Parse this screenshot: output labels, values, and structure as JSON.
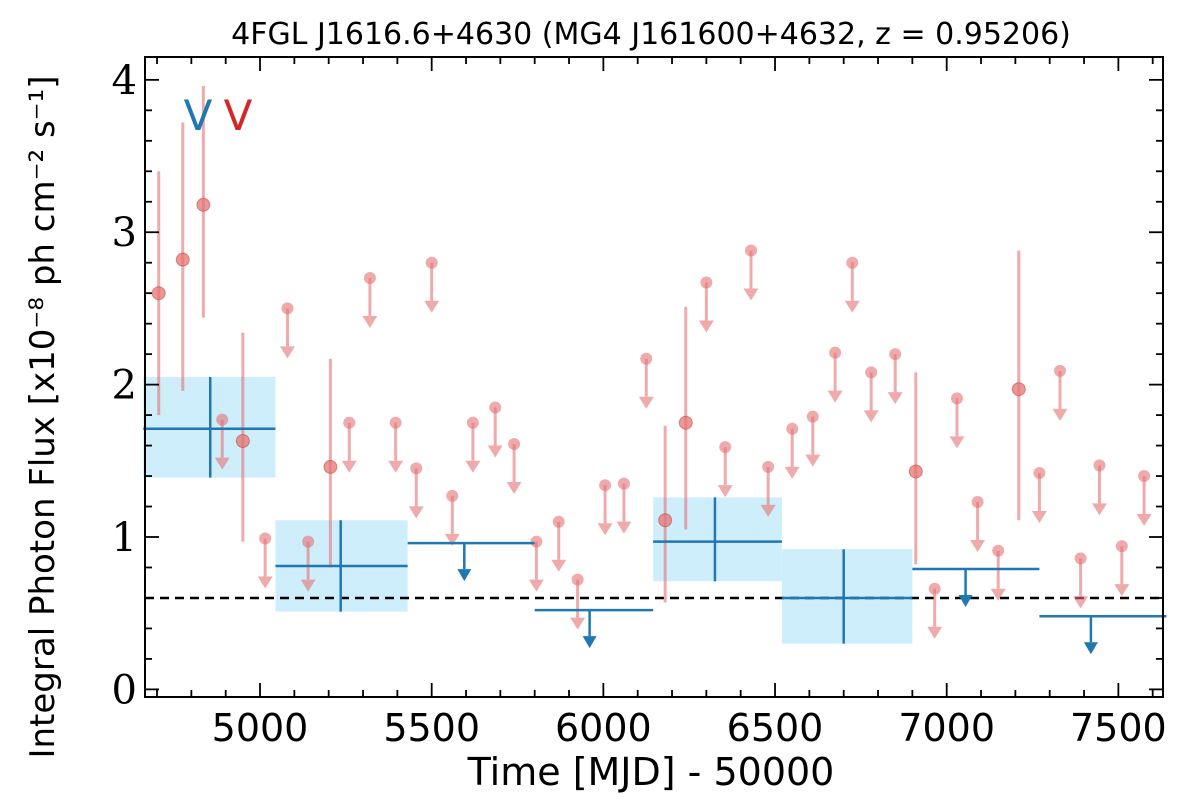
{
  "chart_data": {
    "type": "scatter",
    "title": "4FGL J1616.6+4630 (MG4 J161600+4632, z = 0.95206)",
    "xlabel": "Time [MJD] - 50000",
    "ylabel": "Integral Photon Flux [x10⁻⁸ ph cm⁻² s⁻¹]",
    "xlim": [
      4665,
      7630
    ],
    "ylim": [
      -0.05,
      4.15
    ],
    "xticks": [
      5000,
      5500,
      6000,
      6500,
      7000,
      7500
    ],
    "yticks": [
      0,
      1,
      2,
      3,
      4
    ],
    "grid": false,
    "baseline": 0.6,
    "markers": [
      {
        "label": "V",
        "color": "#1f77b4"
      },
      {
        "label": "V",
        "color": "#d62728"
      }
    ],
    "colors": {
      "fine": "#e57373",
      "coarse": "#1f77b4",
      "box": "#cfeefb",
      "baseline": "#000000"
    },
    "fine_detections": [
      {
        "x": 4705,
        "y": 2.6,
        "lo": 1.8,
        "hi": 3.4
      },
      {
        "x": 4775,
        "y": 2.82,
        "lo": 1.96,
        "hi": 3.72
      },
      {
        "x": 4835,
        "y": 3.18,
        "lo": 2.44,
        "hi": 3.96
      },
      {
        "x": 4950,
        "y": 1.63,
        "lo": 0.97,
        "hi": 2.34
      },
      {
        "x": 5205,
        "y": 1.46,
        "lo": 0.8,
        "hi": 2.17
      },
      {
        "x": 6180,
        "y": 1.11,
        "lo": 0.57,
        "hi": 1.73
      },
      {
        "x": 6240,
        "y": 1.75,
        "lo": 1.05,
        "hi": 2.51
      },
      {
        "x": 6910,
        "y": 1.43,
        "lo": 0.82,
        "hi": 2.08
      },
      {
        "x": 7210,
        "y": 1.97,
        "lo": 1.11,
        "hi": 2.88
      }
    ],
    "fine_upper_limits": [
      {
        "x": 4890,
        "y": 1.77
      },
      {
        "x": 5015,
        "y": 0.99
      },
      {
        "x": 5080,
        "y": 2.5
      },
      {
        "x": 5140,
        "y": 0.97
      },
      {
        "x": 5260,
        "y": 1.75
      },
      {
        "x": 5320,
        "y": 2.7
      },
      {
        "x": 5395,
        "y": 1.75
      },
      {
        "x": 5455,
        "y": 1.45
      },
      {
        "x": 5500,
        "y": 2.8
      },
      {
        "x": 5560,
        "y": 1.27
      },
      {
        "x": 5620,
        "y": 1.75
      },
      {
        "x": 5685,
        "y": 1.85
      },
      {
        "x": 5740,
        "y": 1.61
      },
      {
        "x": 5805,
        "y": 0.97
      },
      {
        "x": 5870,
        "y": 1.1
      },
      {
        "x": 5925,
        "y": 0.72
      },
      {
        "x": 6005,
        "y": 1.34
      },
      {
        "x": 6060,
        "y": 1.35
      },
      {
        "x": 6125,
        "y": 2.17
      },
      {
        "x": 6300,
        "y": 2.67
      },
      {
        "x": 6355,
        "y": 1.59
      },
      {
        "x": 6430,
        "y": 2.88
      },
      {
        "x": 6480,
        "y": 1.46
      },
      {
        "x": 6550,
        "y": 1.71
      },
      {
        "x": 6610,
        "y": 1.79
      },
      {
        "x": 6675,
        "y": 2.21
      },
      {
        "x": 6725,
        "y": 2.8
      },
      {
        "x": 6780,
        "y": 2.08
      },
      {
        "x": 6850,
        "y": 2.2
      },
      {
        "x": 6965,
        "y": 0.66
      },
      {
        "x": 7030,
        "y": 1.91
      },
      {
        "x": 7090,
        "y": 1.23
      },
      {
        "x": 7150,
        "y": 0.91
      },
      {
        "x": 7270,
        "y": 1.42
      },
      {
        "x": 7330,
        "y": 2.09
      },
      {
        "x": 7390,
        "y": 0.86
      },
      {
        "x": 7445,
        "y": 1.47
      },
      {
        "x": 7510,
        "y": 0.94
      },
      {
        "x": 7575,
        "y": 1.4
      }
    ],
    "coarse_detections": [
      {
        "x": 4855,
        "xlo": 4660,
        "xhi": 5045,
        "y": 1.71,
        "lo": 1.39,
        "hi": 2.05
      },
      {
        "x": 5235,
        "xlo": 5045,
        "xhi": 5430,
        "y": 0.81,
        "lo": 0.51,
        "hi": 1.11
      },
      {
        "x": 6325,
        "xlo": 6145,
        "xhi": 6520,
        "y": 0.97,
        "lo": 0.71,
        "hi": 1.26
      },
      {
        "x": 6700,
        "xlo": 6520,
        "xhi": 6900,
        "y": 0.6,
        "lo": 0.3,
        "hi": 0.92
      }
    ],
    "coarse_upper_limits": [
      {
        "x": 5595,
        "xlo": 5430,
        "xhi": 5800,
        "y": 0.96
      },
      {
        "x": 5960,
        "xlo": 5800,
        "xhi": 6145,
        "y": 0.52
      },
      {
        "x": 7055,
        "xlo": 6900,
        "xhi": 7270,
        "y": 0.79
      },
      {
        "x": 7420,
        "xlo": 7270,
        "xhi": 7640,
        "y": 0.48
      }
    ]
  }
}
